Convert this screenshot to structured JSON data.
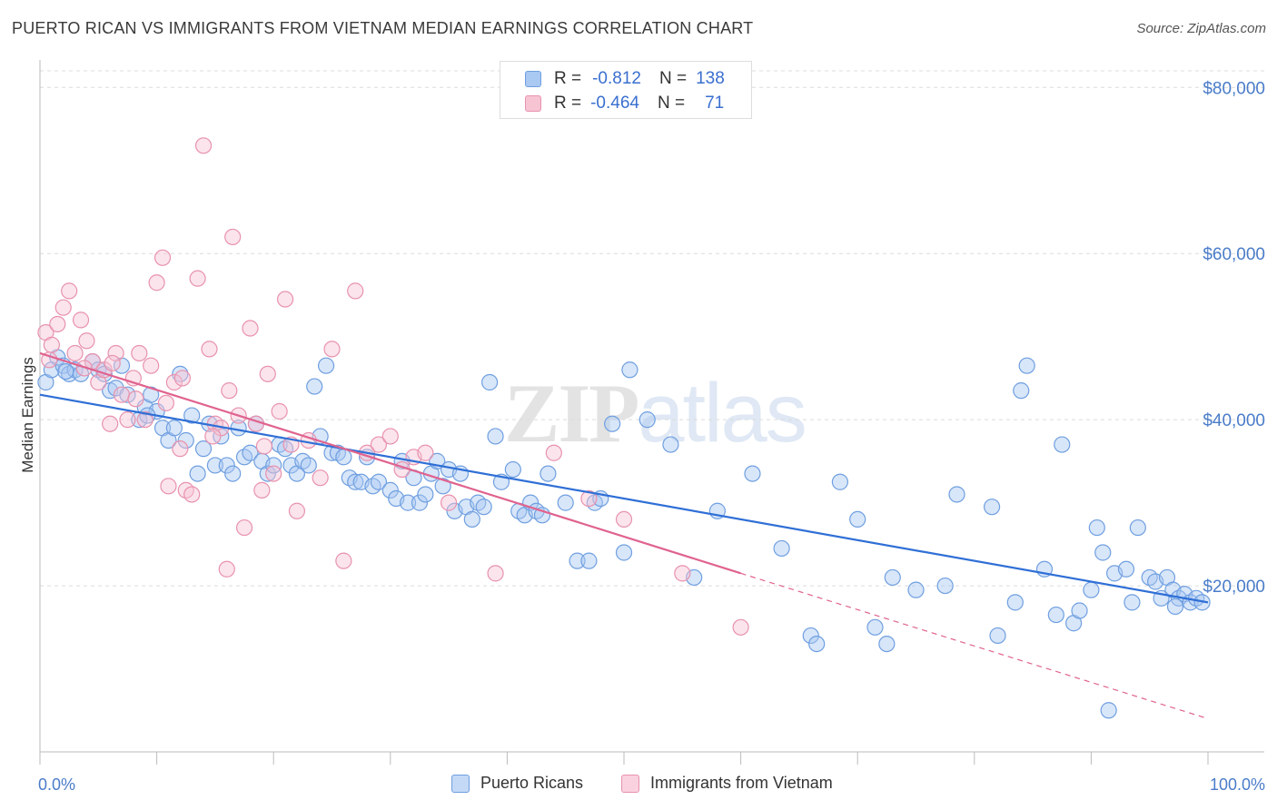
{
  "header": {
    "title": "PUERTO RICAN VS IMMIGRANTS FROM VIETNAM MEDIAN EARNINGS CORRELATION CHART",
    "source": "Source: ZipAtlas.com"
  },
  "watermark": {
    "zip": "ZIP",
    "atlas": "atlas"
  },
  "legend_stats": [
    {
      "r_label": "R =",
      "r_value": "-0.812",
      "n_label": "N =",
      "n_value": "138",
      "color": "#a9c8f2",
      "border": "#6f9fe0"
    },
    {
      "r_label": "R =",
      "r_value": "-0.464",
      "n_label": "N =",
      "n_value": "71",
      "color": "#f7c4d4",
      "border": "#e892ae"
    }
  ],
  "bottom_legend": [
    {
      "label": "Puerto Ricans",
      "color": "#c3d9f6",
      "border": "#6f9fe0"
    },
    {
      "label": "Immigrants from Vietnam",
      "color": "#fad2df",
      "border": "#e892ae"
    }
  ],
  "chart_data": {
    "type": "scatter",
    "title": "PUERTO RICAN VS IMMIGRANTS FROM VIETNAM MEDIAN EARNINGS CORRELATION CHART",
    "xlabel": "",
    "ylabel": "Median Earnings",
    "xlim": [
      0,
      100
    ],
    "ylim": [
      0,
      82000
    ],
    "x_tick_labels": [
      "0.0%",
      "100.0%"
    ],
    "y_ticks": [
      20000,
      40000,
      60000,
      80000
    ],
    "y_tick_labels": [
      "$20,000",
      "$40,000",
      "$60,000",
      "$80,000"
    ],
    "grid": true,
    "series": [
      {
        "name": "Puerto Ricans",
        "color": "#6f9fe0",
        "fill": "#a9c8f2",
        "trend": {
          "x0": 0,
          "y0": 43000,
          "x1": 100,
          "y1": 18000
        },
        "points": [
          [
            0.5,
            44500
          ],
          [
            1.0,
            46000
          ],
          [
            1.5,
            47500
          ],
          [
            2.0,
            46500
          ],
          [
            2.5,
            45500
          ],
          [
            3.0,
            46000
          ],
          [
            3.5,
            45500
          ],
          [
            4.5,
            47000
          ],
          [
            5.0,
            46000
          ],
          [
            5.5,
            45500
          ],
          [
            6.0,
            43500
          ],
          [
            6.5,
            43800
          ],
          [
            7.0,
            46500
          ],
          [
            7.5,
            43000
          ],
          [
            8.5,
            40000
          ],
          [
            9.0,
            41500
          ],
          [
            9.5,
            43000
          ],
          [
            10.0,
            41000
          ],
          [
            10.5,
            39000
          ],
          [
            11.0,
            37500
          ],
          [
            11.5,
            39000
          ],
          [
            12.0,
            45500
          ],
          [
            12.5,
            37500
          ],
          [
            13.0,
            40500
          ],
          [
            13.5,
            33500
          ],
          [
            14.0,
            36500
          ],
          [
            14.5,
            39500
          ],
          [
            15.0,
            34500
          ],
          [
            15.5,
            38000
          ],
          [
            16.0,
            34500
          ],
          [
            16.5,
            33500
          ],
          [
            17.0,
            39000
          ],
          [
            17.5,
            35500
          ],
          [
            18.0,
            36000
          ],
          [
            18.5,
            39500
          ],
          [
            19.0,
            35000
          ],
          [
            19.5,
            33500
          ],
          [
            20.0,
            34500
          ],
          [
            20.5,
            37000
          ],
          [
            21.0,
            36500
          ],
          [
            21.5,
            34500
          ],
          [
            22.0,
            33500
          ],
          [
            22.5,
            35000
          ],
          [
            23.0,
            34500
          ],
          [
            23.5,
            44000
          ],
          [
            24.0,
            38000
          ],
          [
            24.5,
            46500
          ],
          [
            25.0,
            36000
          ],
          [
            25.5,
            36000
          ],
          [
            26.0,
            35500
          ],
          [
            26.5,
            33000
          ],
          [
            27.0,
            32500
          ],
          [
            27.5,
            32500
          ],
          [
            28.0,
            35500
          ],
          [
            28.5,
            32000
          ],
          [
            29.0,
            32500
          ],
          [
            30.0,
            31500
          ],
          [
            30.5,
            30500
          ],
          [
            31.0,
            35000
          ],
          [
            31.5,
            30000
          ],
          [
            32.0,
            33000
          ],
          [
            32.5,
            30000
          ],
          [
            33.0,
            31000
          ],
          [
            33.5,
            33500
          ],
          [
            34.0,
            35000
          ],
          [
            34.5,
            32000
          ],
          [
            35.0,
            34000
          ],
          [
            35.5,
            29000
          ],
          [
            36.0,
            33500
          ],
          [
            36.5,
            29500
          ],
          [
            37.0,
            28000
          ],
          [
            37.5,
            30000
          ],
          [
            38.0,
            29500
          ],
          [
            38.5,
            44500
          ],
          [
            39.0,
            38000
          ],
          [
            39.5,
            32500
          ],
          [
            40.5,
            34000
          ],
          [
            41.0,
            29000
          ],
          [
            41.5,
            28500
          ],
          [
            42.0,
            30000
          ],
          [
            42.5,
            29000
          ],
          [
            43.0,
            28500
          ],
          [
            43.5,
            33500
          ],
          [
            45.0,
            30000
          ],
          [
            46.0,
            23000
          ],
          [
            47.0,
            23000
          ],
          [
            47.5,
            30000
          ],
          [
            48.0,
            30500
          ],
          [
            49.0,
            39500
          ],
          [
            50.0,
            24000
          ],
          [
            50.5,
            46000
          ],
          [
            52.0,
            40000
          ],
          [
            54.0,
            37000
          ],
          [
            56.0,
            21000
          ],
          [
            58.0,
            29000
          ],
          [
            61.0,
            33500
          ],
          [
            63.5,
            24500
          ],
          [
            66.0,
            14000
          ],
          [
            66.5,
            13000
          ],
          [
            68.5,
            32500
          ],
          [
            70.0,
            28000
          ],
          [
            71.5,
            15000
          ],
          [
            72.5,
            13000
          ],
          [
            73.0,
            21000
          ],
          [
            75.0,
            19500
          ],
          [
            77.5,
            20000
          ],
          [
            78.5,
            31000
          ],
          [
            81.5,
            29500
          ],
          [
            82.0,
            14000
          ],
          [
            83.5,
            18000
          ],
          [
            84.0,
            43500
          ],
          [
            84.5,
            46500
          ],
          [
            86.0,
            22000
          ],
          [
            87.0,
            16500
          ],
          [
            87.5,
            37000
          ],
          [
            88.5,
            15500
          ],
          [
            89.0,
            17000
          ],
          [
            90.0,
            19500
          ],
          [
            90.5,
            27000
          ],
          [
            91.0,
            24000
          ],
          [
            92.0,
            21500
          ],
          [
            93.0,
            22000
          ],
          [
            94.0,
            27000
          ],
          [
            95.0,
            21000
          ],
          [
            95.5,
            20500
          ],
          [
            96.0,
            18500
          ],
          [
            96.5,
            21000
          ],
          [
            97.0,
            19500
          ],
          [
            97.5,
            18500
          ],
          [
            98.0,
            19000
          ],
          [
            98.5,
            18000
          ],
          [
            99.0,
            18500
          ],
          [
            93.5,
            18000
          ],
          [
            91.5,
            5000
          ],
          [
            99.5,
            18000
          ],
          [
            97.2,
            17500
          ],
          [
            2.2,
            45800
          ],
          [
            9.2,
            40500
          ]
        ]
      },
      {
        "name": "Immigrants from Vietnam",
        "color": "#e892ae",
        "fill": "#f7c4d4",
        "trend": {
          "x0": 0,
          "y0": 48000,
          "x1": 60,
          "y1": 21500,
          "dashed_to": {
            "x": 100,
            "y": 4000
          }
        },
        "points": [
          [
            0.5,
            50500
          ],
          [
            1.0,
            49000
          ],
          [
            1.5,
            51500
          ],
          [
            2.0,
            53500
          ],
          [
            2.5,
            55500
          ],
          [
            3.0,
            48000
          ],
          [
            3.5,
            52000
          ],
          [
            4.0,
            49500
          ],
          [
            4.5,
            47000
          ],
          [
            5.0,
            44500
          ],
          [
            5.5,
            46000
          ],
          [
            6.0,
            39500
          ],
          [
            6.5,
            48000
          ],
          [
            7.0,
            43000
          ],
          [
            7.5,
            40000
          ],
          [
            8.0,
            45000
          ],
          [
            8.5,
            48000
          ],
          [
            9.0,
            40000
          ],
          [
            9.5,
            46500
          ],
          [
            10.0,
            56500
          ],
          [
            10.5,
            59500
          ],
          [
            11.0,
            32000
          ],
          [
            11.5,
            44500
          ],
          [
            12.0,
            36500
          ],
          [
            12.5,
            31500
          ],
          [
            13.0,
            31000
          ],
          [
            13.5,
            57000
          ],
          [
            14.0,
            73000
          ],
          [
            14.5,
            48500
          ],
          [
            15.0,
            39500
          ],
          [
            15.5,
            39000
          ],
          [
            16.0,
            22000
          ],
          [
            16.5,
            62000
          ],
          [
            17.0,
            40500
          ],
          [
            17.5,
            27000
          ],
          [
            18.0,
            51000
          ],
          [
            18.5,
            39500
          ],
          [
            19.0,
            31500
          ],
          [
            19.5,
            45500
          ],
          [
            20.0,
            33500
          ],
          [
            20.5,
            41000
          ],
          [
            21.0,
            54500
          ],
          [
            21.5,
            37000
          ],
          [
            22.0,
            29000
          ],
          [
            23.0,
            37500
          ],
          [
            24.0,
            33000
          ],
          [
            25.0,
            48500
          ],
          [
            26.0,
            23000
          ],
          [
            27.0,
            55500
          ],
          [
            28.0,
            36000
          ],
          [
            29.0,
            37000
          ],
          [
            30.0,
            38000
          ],
          [
            31.0,
            34000
          ],
          [
            32.0,
            35500
          ],
          [
            33.0,
            36000
          ],
          [
            35.0,
            30000
          ],
          [
            39.0,
            21500
          ],
          [
            44.0,
            36000
          ],
          [
            47.0,
            30500
          ],
          [
            50.0,
            28000
          ],
          [
            55.0,
            21500
          ],
          [
            60.0,
            15000
          ],
          [
            8.2,
            42500
          ],
          [
            12.2,
            45000
          ],
          [
            16.2,
            43500
          ],
          [
            6.2,
            46800
          ],
          [
            3.8,
            46200
          ],
          [
            10.8,
            42000
          ],
          [
            14.8,
            38000
          ],
          [
            19.2,
            36800
          ],
          [
            0.8,
            47200
          ]
        ]
      }
    ]
  }
}
